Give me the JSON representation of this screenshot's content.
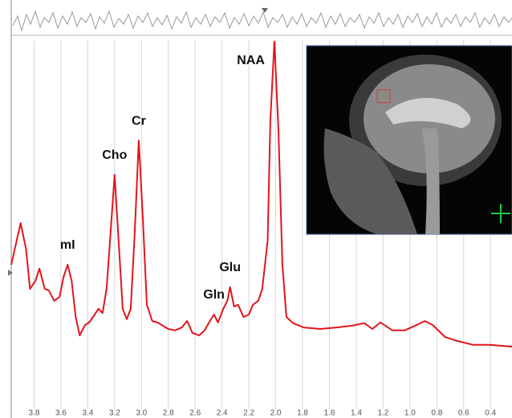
{
  "chart_data": {
    "type": "line",
    "x": [
      3.97,
      3.93,
      3.9,
      3.86,
      3.83,
      3.79,
      3.76,
      3.72,
      3.69,
      3.65,
      3.61,
      3.58,
      3.55,
      3.52,
      3.49,
      3.46,
      3.42,
      3.39,
      3.36,
      3.32,
      3.29,
      3.26,
      3.23,
      3.2,
      3.17,
      3.14,
      3.11,
      3.08,
      3.05,
      3.02,
      2.99,
      2.96,
      2.92,
      2.88,
      2.85,
      2.8,
      2.75,
      2.7,
      2.66,
      2.62,
      2.57,
      2.53,
      2.49,
      2.46,
      2.43,
      2.39,
      2.36,
      2.34,
      2.31,
      2.28,
      2.24,
      2.2,
      2.17,
      2.13,
      2.1,
      2.06,
      2.04,
      2.01,
      1.98,
      1.95,
      1.92,
      1.87,
      1.79,
      1.67,
      1.55,
      1.43,
      1.34,
      1.28,
      1.22,
      1.13,
      1.04,
      0.95,
      0.89,
      0.83,
      0.74,
      0.65,
      0.53,
      0.41,
      0.24
    ],
    "series": [
      {
        "color": "#e3141c",
        "values": [
          37.8,
          44.4,
          49.3,
          42.2,
          31.1,
          33.3,
          36.7,
          31.1,
          30.7,
          27.8,
          28.9,
          34.4,
          37.8,
          33.3,
          23.3,
          18.2,
          21.1,
          21.8,
          23.3,
          25.6,
          24.4,
          31.1,
          46.7,
          62.7,
          44.4,
          25.6,
          22.7,
          25.6,
          46.7,
          72.2,
          51.1,
          26.7,
          22.2,
          21.8,
          21.1,
          20.0,
          19.6,
          20.4,
          22.2,
          18.9,
          18.2,
          19.6,
          22.2,
          24.0,
          21.8,
          25.6,
          27.8,
          31.6,
          26.2,
          26.7,
          23.3,
          24.0,
          26.7,
          27.8,
          31.1,
          44.4,
          77.8,
          99.6,
          75.6,
          37.8,
          23.3,
          21.6,
          20.4,
          20.0,
          20.4,
          20.9,
          21.6,
          20.0,
          21.8,
          19.6,
          19.6,
          21.1,
          22.2,
          21.1,
          17.8,
          16.7,
          15.6,
          15.6,
          15.1
        ]
      }
    ],
    "xlim": [
      3.97,
      0.24
    ],
    "ylim": [
      0,
      100
    ],
    "xticks": [
      3.8,
      3.6,
      3.4,
      3.2,
      {
        "value": 3,
        "label": "3.0"
      },
      2.8,
      2.6,
      2.4,
      2.2,
      {
        "value": 2,
        "label": "2.0"
      },
      1.8,
      1.6,
      1.4,
      1.2,
      {
        "value": 1,
        "label": "1.0"
      },
      0.8,
      0.6,
      0.4
    ],
    "grid": true,
    "annotations": [
      {
        "text": "mI",
        "x": 3.55
      },
      {
        "text": "Cho",
        "x": 3.2
      },
      {
        "text": "Cr",
        "x": 3.02
      },
      {
        "text": "Gln",
        "x": 2.46
      },
      {
        "text": "Glu",
        "x": 2.34
      },
      {
        "text": "NAA",
        "x": 2.01
      }
    ]
  }
}
